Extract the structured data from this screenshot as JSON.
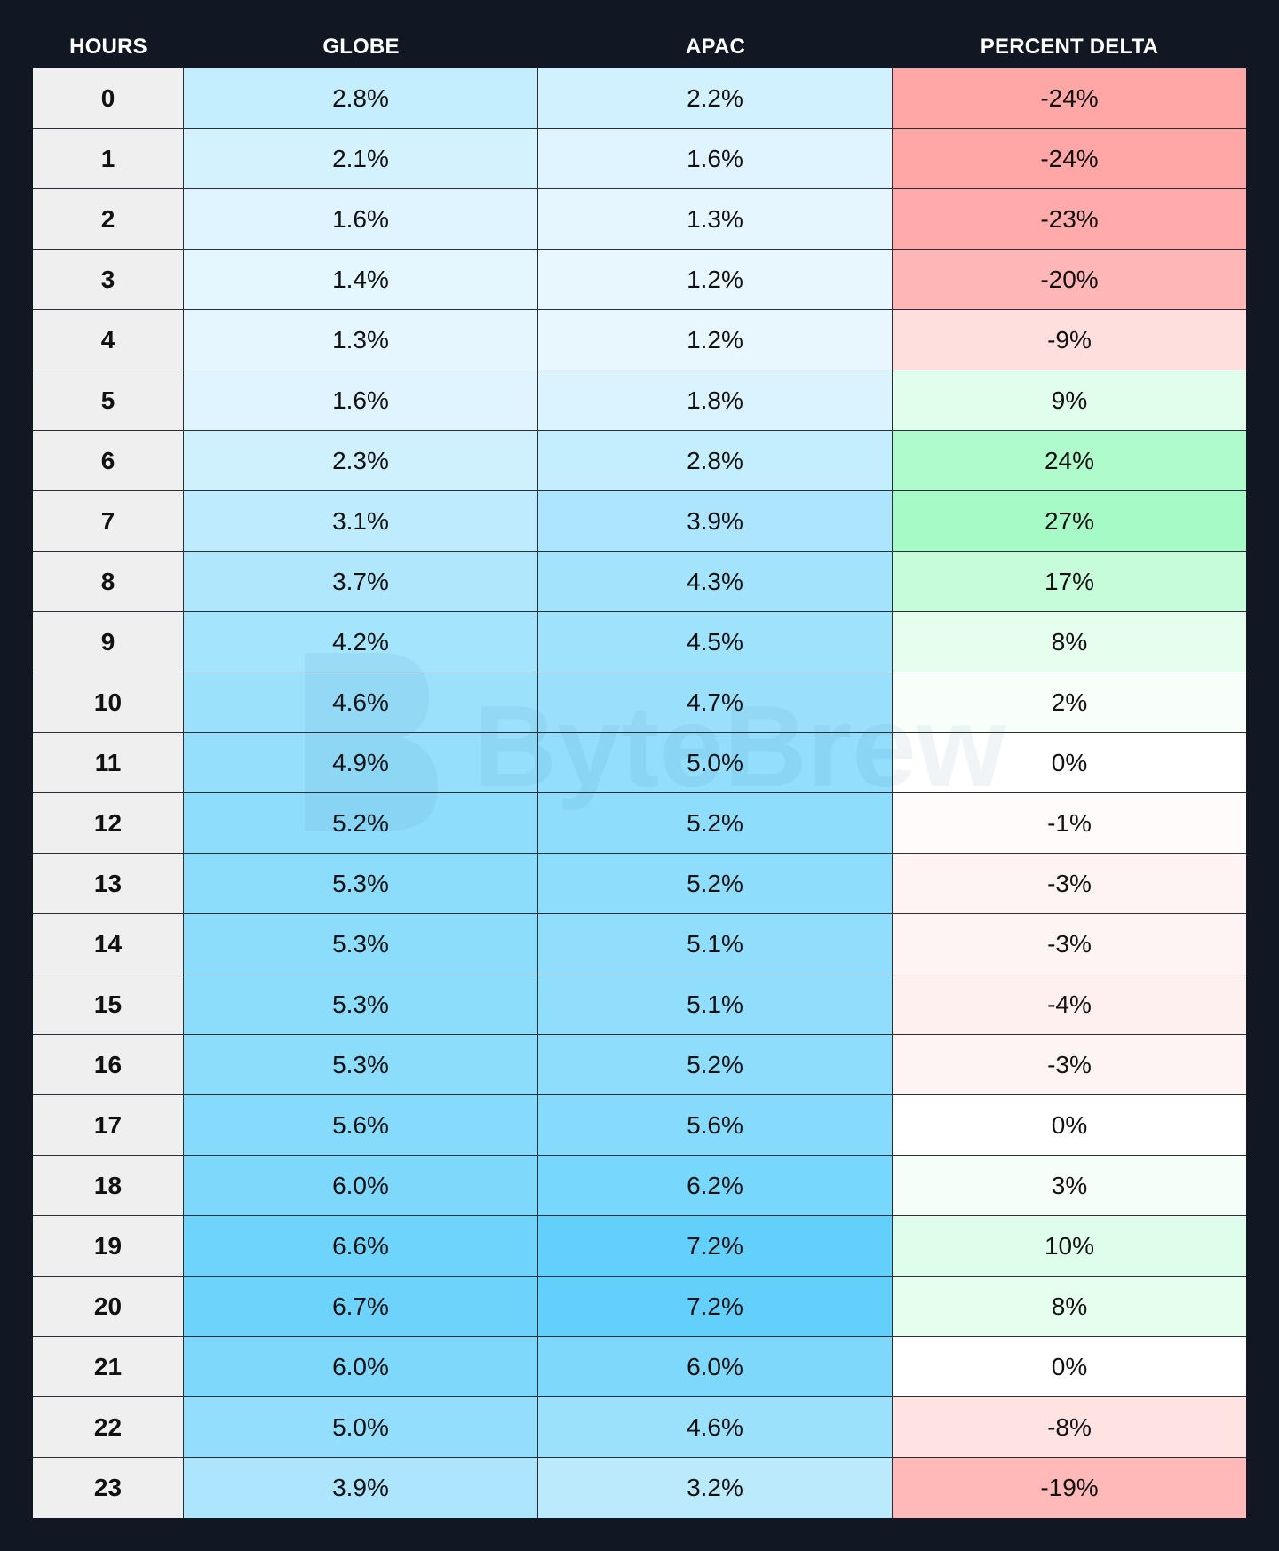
{
  "chart_data": {
    "type": "table",
    "columns": [
      "HOURS",
      "GLOBE",
      "APAC",
      "PERCENT DELTA"
    ],
    "rows": [
      {
        "hour": "0",
        "globe": "2.8%",
        "apac": "2.2%",
        "delta": "-24%"
      },
      {
        "hour": "1",
        "globe": "2.1%",
        "apac": "1.6%",
        "delta": "-24%"
      },
      {
        "hour": "2",
        "globe": "1.6%",
        "apac": "1.3%",
        "delta": "-23%"
      },
      {
        "hour": "3",
        "globe": "1.4%",
        "apac": "1.2%",
        "delta": "-20%"
      },
      {
        "hour": "4",
        "globe": "1.3%",
        "apac": "1.2%",
        "delta": "-9%"
      },
      {
        "hour": "5",
        "globe": "1.6%",
        "apac": "1.8%",
        "delta": "9%"
      },
      {
        "hour": "6",
        "globe": "2.3%",
        "apac": "2.8%",
        "delta": "24%"
      },
      {
        "hour": "7",
        "globe": "3.1%",
        "apac": "3.9%",
        "delta": "27%"
      },
      {
        "hour": "8",
        "globe": "3.7%",
        "apac": "4.3%",
        "delta": "17%"
      },
      {
        "hour": "9",
        "globe": "4.2%",
        "apac": "4.5%",
        "delta": "8%"
      },
      {
        "hour": "10",
        "globe": "4.6%",
        "apac": "4.7%",
        "delta": "2%"
      },
      {
        "hour": "11",
        "globe": "4.9%",
        "apac": "5.0%",
        "delta": "0%"
      },
      {
        "hour": "12",
        "globe": "5.2%",
        "apac": "5.2%",
        "delta": "-1%"
      },
      {
        "hour": "13",
        "globe": "5.3%",
        "apac": "5.2%",
        "delta": "-3%"
      },
      {
        "hour": "14",
        "globe": "5.3%",
        "apac": "5.1%",
        "delta": "-3%"
      },
      {
        "hour": "15",
        "globe": "5.3%",
        "apac": "5.1%",
        "delta": "-4%"
      },
      {
        "hour": "16",
        "globe": "5.3%",
        "apac": "5.2%",
        "delta": "-3%"
      },
      {
        "hour": "17",
        "globe": "5.6%",
        "apac": "5.6%",
        "delta": "0%"
      },
      {
        "hour": "18",
        "globe": "6.0%",
        "apac": "6.2%",
        "delta": "3%"
      },
      {
        "hour": "19",
        "globe": "6.6%",
        "apac": "7.2%",
        "delta": "10%"
      },
      {
        "hour": "20",
        "globe": "6.7%",
        "apac": "7.2%",
        "delta": "8%"
      },
      {
        "hour": "21",
        "globe": "6.0%",
        "apac": "6.0%",
        "delta": "0%"
      },
      {
        "hour": "22",
        "globe": "5.0%",
        "apac": "4.6%",
        "delta": "-8%"
      },
      {
        "hour": "23",
        "globe": "3.9%",
        "apac": "3.2%",
        "delta": "-19%"
      }
    ],
    "colors": {
      "page_background": "#111823",
      "hours_cell": "#efefef",
      "share_low": "#e8f7fe",
      "share_high": "#62d0fb",
      "delta_negative": "#ff9c9c",
      "delta_zero": "#ffffff",
      "delta_positive": "#a6fac6"
    }
  },
  "watermark": {
    "text": "ByteBrew"
  }
}
